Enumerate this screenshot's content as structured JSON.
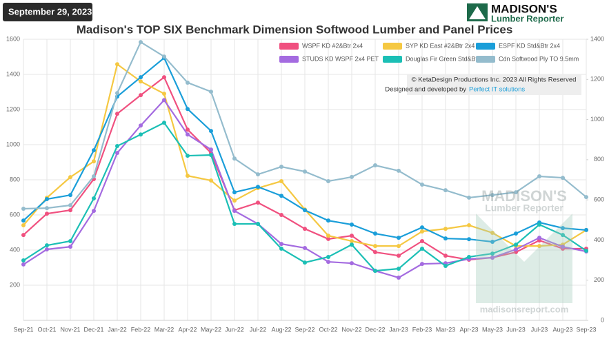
{
  "date_badge": "September 29, 2023",
  "logo": {
    "name": "MADISON'S",
    "subtitle": "Lumber Reporter"
  },
  "copyright": "© KetaDesign Productions Inc. 2023 All Rights Reserved",
  "credit": {
    "text": "Designed and developed by",
    "link": "Perfect IT solutions"
  },
  "watermark": {
    "name": "MADISON'S",
    "subtitle": "Lumber Reporter",
    "url": "madisonsreport.com"
  },
  "chart_data": {
    "type": "line",
    "title": "Madison's TOP SIX Benchmark Dimension Softwood Lumber and Panel Prices",
    "categories": [
      "Sep-21",
      "Oct-21",
      "Nov-21",
      "Dec-21",
      "Jan-22",
      "Feb-22",
      "Mar-22",
      "Apr-22",
      "May-22",
      "Jun-22",
      "Jul-22",
      "Aug-22",
      "Sep-22",
      "Oct-22",
      "Nov-22",
      "Dec-22",
      "Jan-23",
      "Feb-23",
      "Mar-23",
      "Apr-23",
      "May-23",
      "Jun-23",
      "Jul-23",
      "Aug-23",
      "Sep-23"
    ],
    "ylim": [
      0,
      1600
    ],
    "yticks": [
      200,
      400,
      600,
      800,
      1000,
      1200,
      1400,
      1600
    ],
    "y2lim": [
      0,
      1400
    ],
    "y2ticks": [
      0,
      200,
      400,
      600,
      800,
      1000,
      1200,
      1400
    ],
    "grid": true,
    "legend": "top-right",
    "series": [
      {
        "name": "WSPF KD #2&Btr 2x4",
        "color": "#f0507f",
        "values": [
          486,
          607,
          627,
          804,
          1176,
          1282,
          1384,
          1086,
          953,
          627,
          670,
          600,
          521,
          463,
          482,
          388,
          368,
          451,
          368,
          345,
          357,
          388,
          455,
          408,
          408
        ]
      },
      {
        "name": "SYP KD East #2&Btr 2x4",
        "color": "#f5c842",
        "values": [
          541,
          698,
          815,
          905,
          1458,
          1360,
          1290,
          823,
          796,
          682,
          753,
          792,
          631,
          482,
          451,
          423,
          423,
          506,
          521,
          541,
          498,
          423,
          423,
          431,
          514
        ]
      },
      {
        "name": "ESPF KD Std&Btr 2x4",
        "color": "#1a9ed9",
        "values": [
          568,
          690,
          713,
          968,
          1274,
          1384,
          1494,
          1203,
          1078,
          729,
          760,
          709,
          627,
          568,
          545,
          494,
          470,
          529,
          466,
          462,
          447,
          494,
          557,
          525,
          514
        ]
      },
      {
        "name": "STUDS KD WSPF 2x4 PET",
        "color": "#a46be0",
        "values": [
          318,
          404,
          419,
          623,
          953,
          1109,
          1254,
          1058,
          972,
          623,
          549,
          435,
          412,
          333,
          325,
          282,
          243,
          321,
          325,
          349,
          357,
          404,
          470,
          419,
          392
        ]
      },
      {
        "name": "Douglas Fir Green Std&Btr 2x4",
        "color": "#1bbfb5",
        "values": [
          341,
          427,
          451,
          694,
          992,
          1058,
          1125,
          937,
          941,
          549,
          549,
          408,
          329,
          361,
          431,
          282,
          294,
          408,
          310,
          361,
          380,
          431,
          545,
          486,
          396
        ]
      },
      {
        "name": "Cdn Softwood Ply TO 9.5mm",
        "color": "#94bccd",
        "axis": "y2",
        "values": [
          556,
          559,
          573,
          717,
          1132,
          1386,
          1314,
          1184,
          1139,
          806,
          727,
          765,
          741,
          693,
          714,
          772,
          745,
          676,
          648,
          611,
          624,
          638,
          717,
          710,
          614
        ]
      }
    ]
  }
}
